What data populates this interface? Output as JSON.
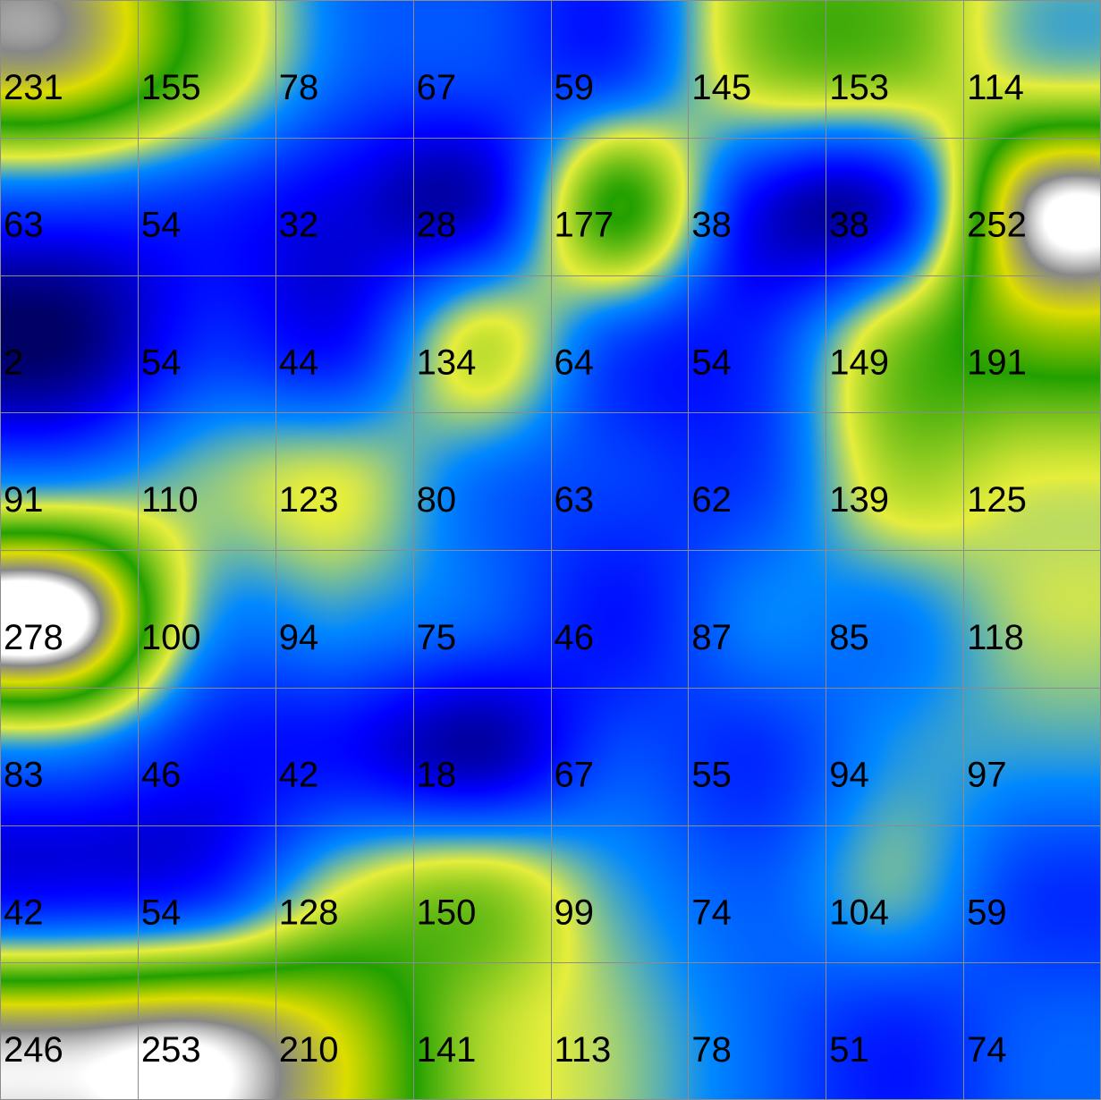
{
  "chart_data": {
    "type": "heatmap",
    "title": "",
    "xlabel": "",
    "ylabel": "",
    "rows": 8,
    "cols": 8,
    "grid": true,
    "legend": "none",
    "values": [
      [
        231,
        155,
        78,
        67,
        59,
        145,
        153,
        114
      ],
      [
        63,
        54,
        32,
        28,
        177,
        38,
        38,
        252
      ],
      [
        2,
        54,
        44,
        134,
        64,
        54,
        149,
        191
      ],
      [
        91,
        110,
        123,
        80,
        63,
        62,
        139,
        125
      ],
      [
        278,
        100,
        94,
        75,
        46,
        87,
        85,
        118
      ],
      [
        83,
        46,
        42,
        18,
        67,
        55,
        94,
        97
      ],
      [
        42,
        54,
        128,
        150,
        99,
        74,
        104,
        59
      ],
      [
        246,
        253,
        210,
        141,
        113,
        78,
        51,
        74
      ]
    ],
    "colorscale": [
      {
        "value": 0,
        "color": "#000066"
      },
      {
        "value": 40,
        "color": "#0000ff"
      },
      {
        "value": 90,
        "color": "#0088ff"
      },
      {
        "value": 125,
        "color": "#e6ee3c"
      },
      {
        "value": 175,
        "color": "#22a000"
      },
      {
        "value": 215,
        "color": "#dddd00"
      },
      {
        "value": 245,
        "color": "#888888"
      },
      {
        "value": 262,
        "color": "#ffffff"
      }
    ],
    "grid_color": "#8c8c8c",
    "label_color": "#000000"
  }
}
